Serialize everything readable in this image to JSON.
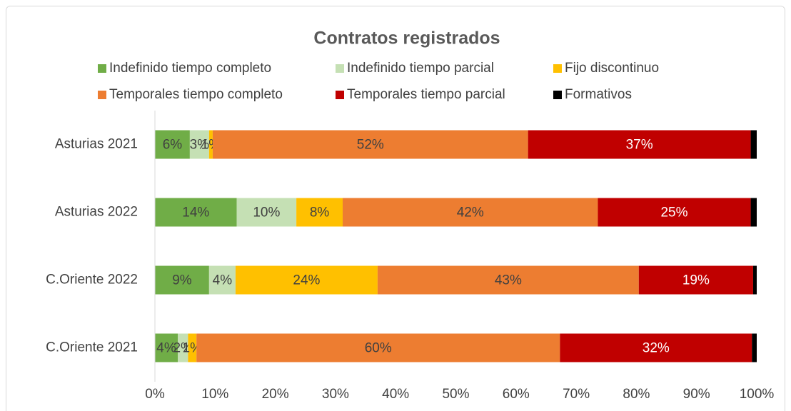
{
  "chart_data": {
    "type": "stacked-bar-horizontal",
    "title": "Contratos registrados",
    "categories": [
      "Asturias 2021",
      "Asturias 2022",
      "C.Oriente 2022",
      "C.Oriente 2021"
    ],
    "series": [
      {
        "name": "Indefinido tiempo completo",
        "color": "#70ad47",
        "values": [
          5.8,
          13.6,
          9.0,
          3.8
        ],
        "value_labels": [
          "6%",
          "14%",
          "9%",
          "4%"
        ]
      },
      {
        "name": "Indefinido tiempo parcial",
        "color": "#c5e0b4",
        "values": [
          3.2,
          9.9,
          4.4,
          1.7
        ],
        "value_labels": [
          "3%",
          "10%",
          "4%",
          "2%"
        ]
      },
      {
        "name": "Fijo discontinuo",
        "color": "#ffc000",
        "values": [
          0.6,
          7.7,
          23.6,
          1.4
        ],
        "value_labels": [
          "1%",
          "8%",
          "24%",
          "1%"
        ]
      },
      {
        "name": "Temporales tiempo completo",
        "color": "#ed7d31",
        "values": [
          52.4,
          42.4,
          43.4,
          60.4
        ],
        "value_labels": [
          "52%",
          "42%",
          "43%",
          "60%"
        ]
      },
      {
        "name": "Temporales tiempo parcial",
        "color": "#c00000",
        "values": [
          37.0,
          25.4,
          19.0,
          31.9
        ],
        "value_labels": [
          "37%",
          "25%",
          "19%",
          "32%"
        ]
      },
      {
        "name": "Formativos",
        "color": "#000000",
        "values": [
          1.0,
          1.0,
          0.6,
          0.8
        ],
        "value_labels": [
          null,
          null,
          null,
          null
        ]
      }
    ],
    "xlim": [
      0,
      100
    ],
    "xticks": [
      {
        "value": 0,
        "label": "0%"
      },
      {
        "value": 10,
        "label": "10%"
      },
      {
        "value": 20,
        "label": "20%"
      },
      {
        "value": 30,
        "label": "30%"
      },
      {
        "value": 40,
        "label": "40%"
      },
      {
        "value": 50,
        "label": "50%"
      },
      {
        "value": 60,
        "label": "60%"
      },
      {
        "value": 70,
        "label": "70%"
      },
      {
        "value": 80,
        "label": "80%"
      },
      {
        "value": 90,
        "label": "90%"
      },
      {
        "value": 100,
        "label": "100%"
      }
    ],
    "legend": "top"
  }
}
